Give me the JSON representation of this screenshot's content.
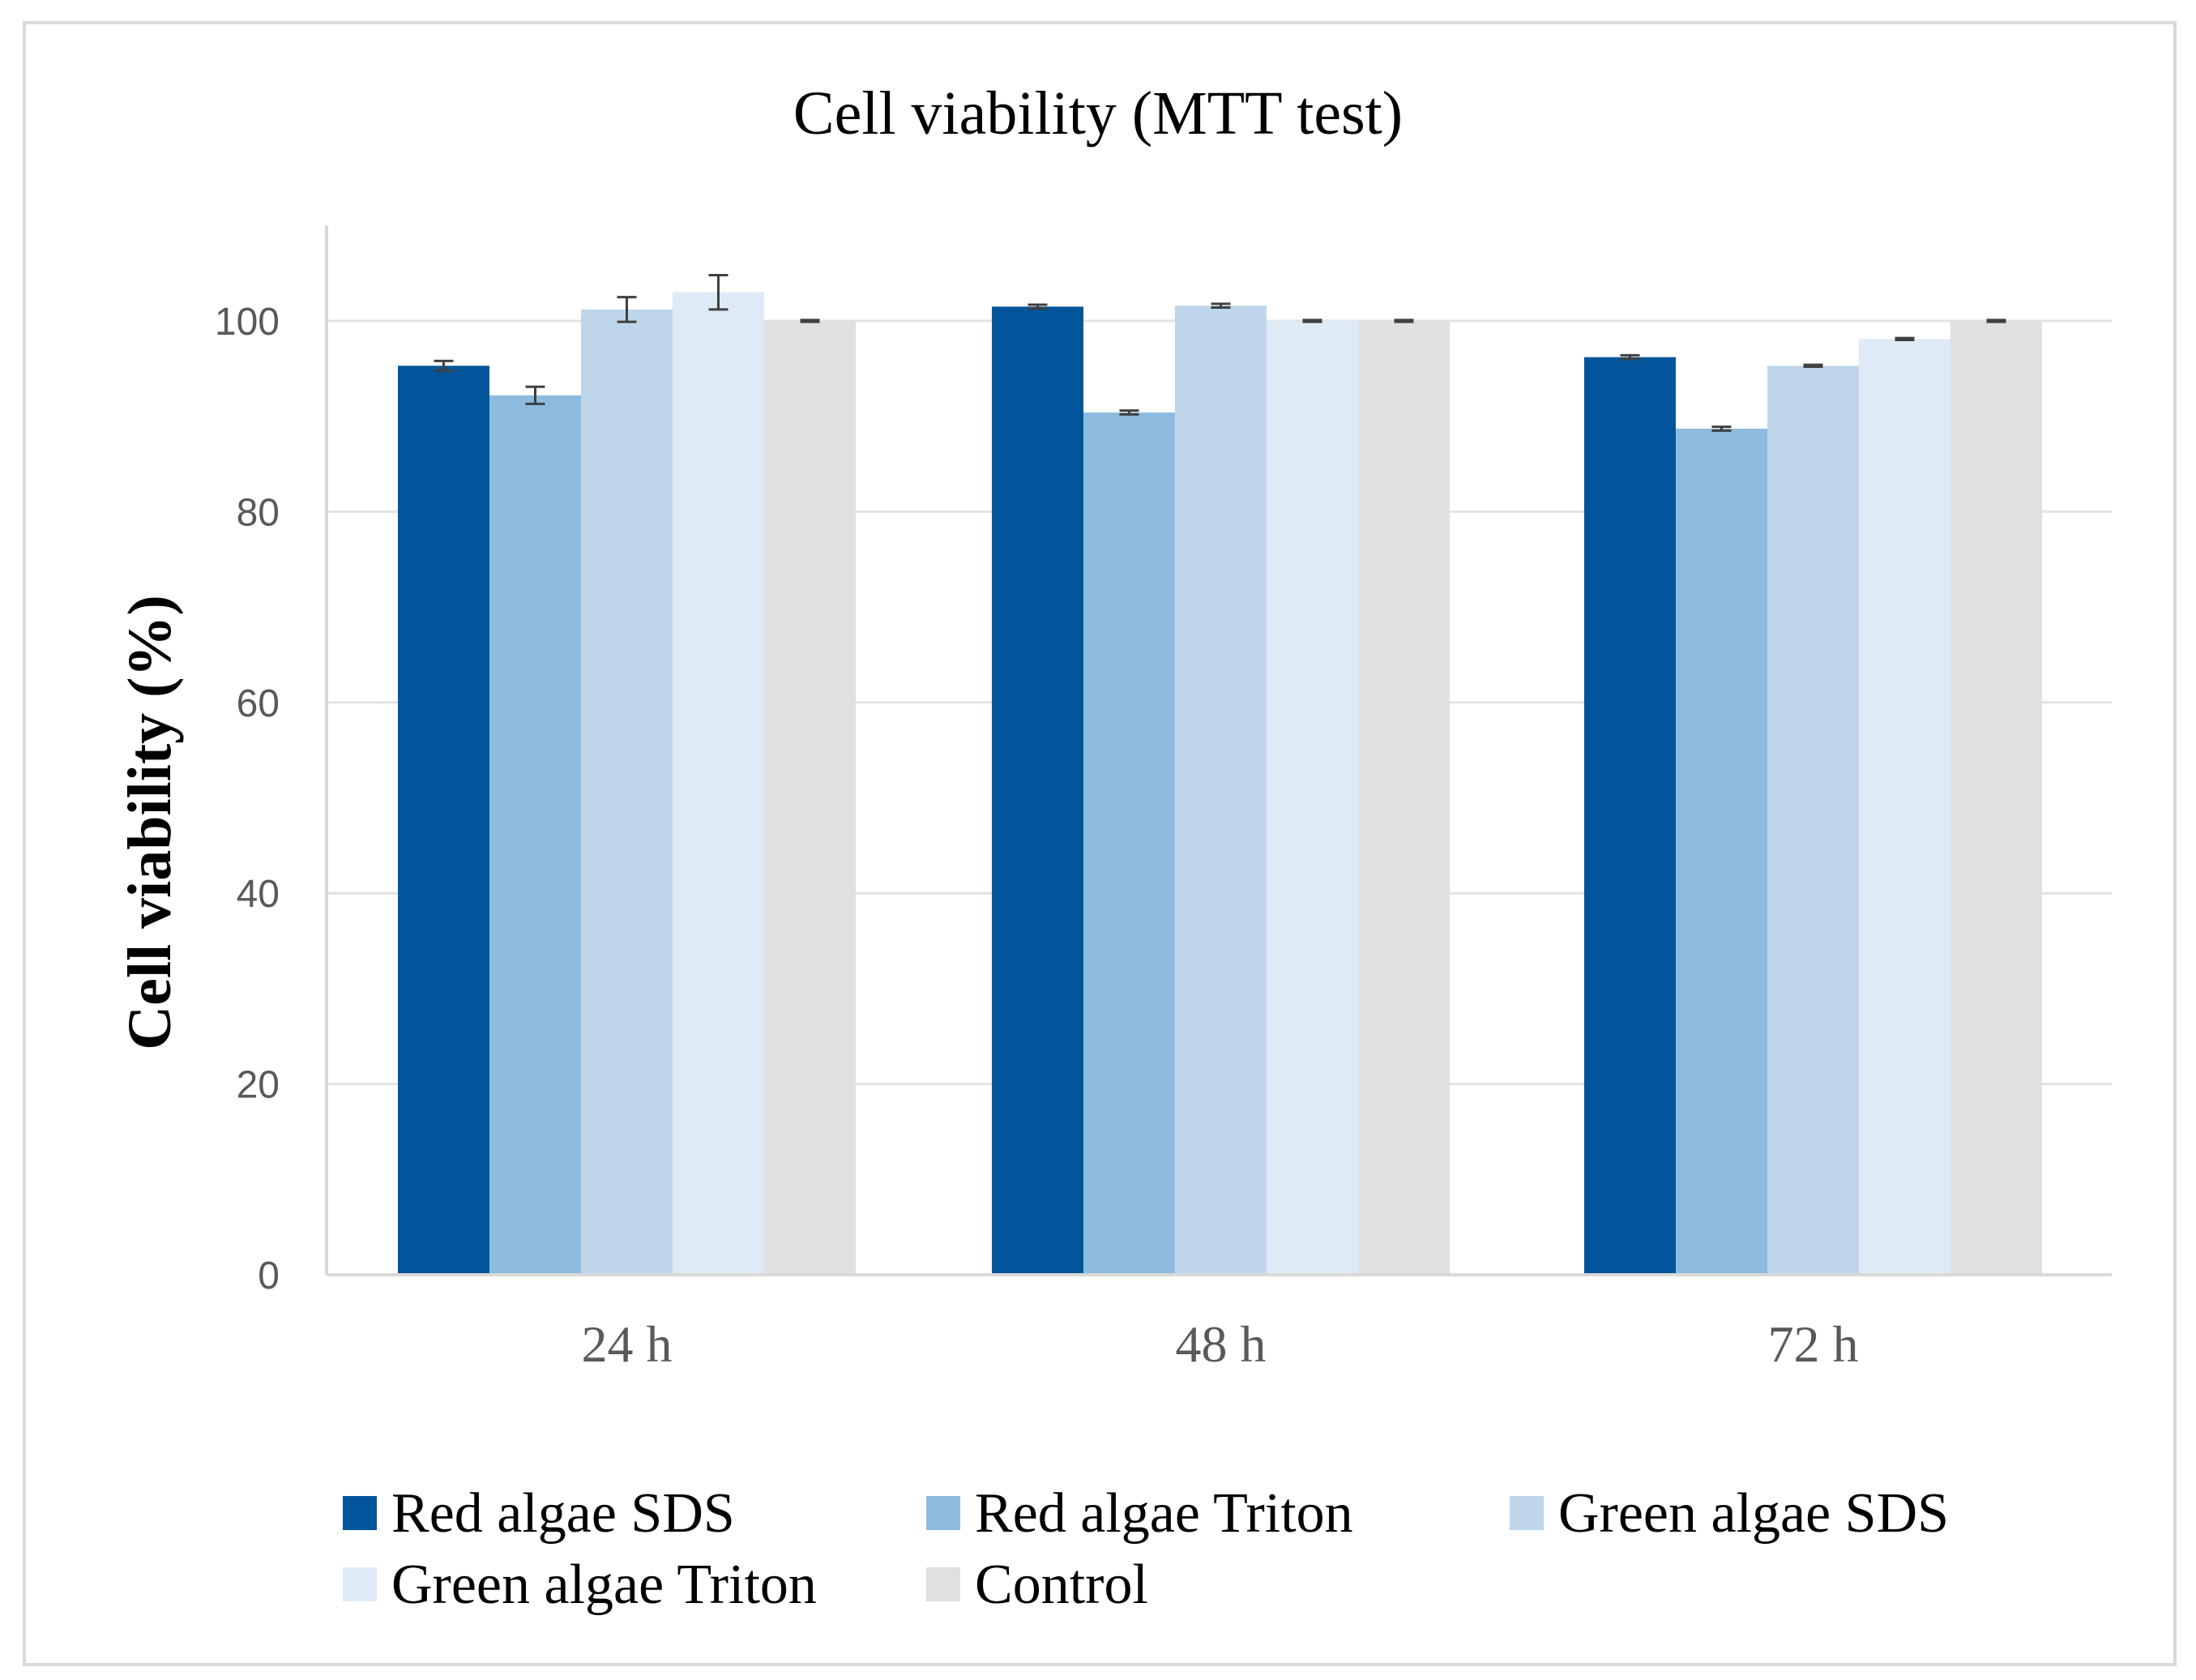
{
  "chart_data": {
    "type": "bar",
    "title": "Cell viability (MTT test)",
    "xlabel": "",
    "ylabel": "Cell viability (%)",
    "ylim": [
      0,
      110
    ],
    "yticks": [
      0,
      20,
      40,
      60,
      80,
      100
    ],
    "grid": true,
    "legend_position": "bottom",
    "categories": [
      "24 h",
      "48 h",
      "72 h"
    ],
    "series": [
      {
        "name": "Red algae SDS",
        "color": "#02559a",
        "values": [
          95.3,
          101.5,
          96.2
        ],
        "errors": [
          0.5,
          0.2,
          0.2
        ]
      },
      {
        "name": "Red algae Triton",
        "color": "#8dbbe0",
        "values": [
          92.2,
          90.4,
          88.7
        ],
        "errors": [
          0.9,
          0.2,
          0.2
        ]
      },
      {
        "name": "Green algae SDS",
        "color": "#bfd6ea",
        "values": [
          101.2,
          101.6,
          95.3
        ],
        "errors": [
          1.3,
          0.2,
          0.1
        ]
      },
      {
        "name": "Green algae Triton",
        "color": "#deeaf5",
        "values": [
          103.0,
          100.0,
          98.1
        ],
        "errors": [
          1.8,
          0.1,
          0.1
        ]
      },
      {
        "name": "Control",
        "color": "#e0e0e0",
        "values": [
          100,
          100,
          100
        ],
        "errors": [
          0.1,
          0.1,
          0.1
        ]
      }
    ]
  }
}
